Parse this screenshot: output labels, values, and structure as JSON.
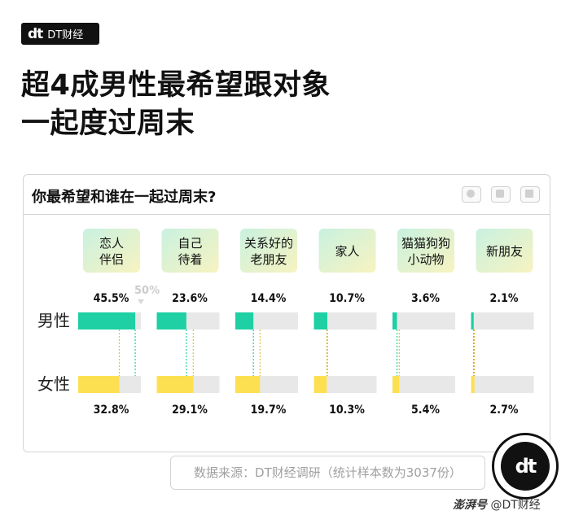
{
  "brand": {
    "mark": "dt",
    "name": "DT财经"
  },
  "headline": {
    "line1": "超4成男性最希望跟对象",
    "line2": "一起度过周末"
  },
  "chart_data": {
    "type": "bar",
    "title": "你最希望和谁在一起过周末?",
    "categories": [
      [
        "恋人",
        "伴侣"
      ],
      [
        "自己",
        "待着"
      ],
      [
        "关系好的",
        "老朋友"
      ],
      [
        "家人"
      ],
      [
        "猫猫狗狗",
        "小动物"
      ],
      [
        "新朋友"
      ]
    ],
    "series": [
      {
        "name": "男性",
        "values": [
          45.5,
          23.6,
          14.4,
          10.7,
          3.6,
          2.1
        ],
        "labels": [
          "45.5%",
          "23.6%",
          "14.4%",
          "10.7%",
          "3.6%",
          "2.1%"
        ],
        "color": "#1ed0a4"
      },
      {
        "name": "女性",
        "values": [
          32.8,
          29.1,
          19.7,
          10.3,
          5.4,
          2.7
        ],
        "labels": [
          "32.8%",
          "29.1%",
          "19.7%",
          "10.3%",
          "5.4%",
          "2.7%"
        ],
        "color": "#fde052"
      }
    ],
    "scale_max": 50,
    "reference_label": "50%",
    "track_color": "#e8e8e8",
    "ylim": [
      0,
      50
    ]
  },
  "source": "数据来源：DT财经调研（统计样本数为3037份）",
  "badge": {
    "mark": "dt"
  },
  "credit": {
    "platform": "澎湃号",
    "account": "@DT财经"
  }
}
